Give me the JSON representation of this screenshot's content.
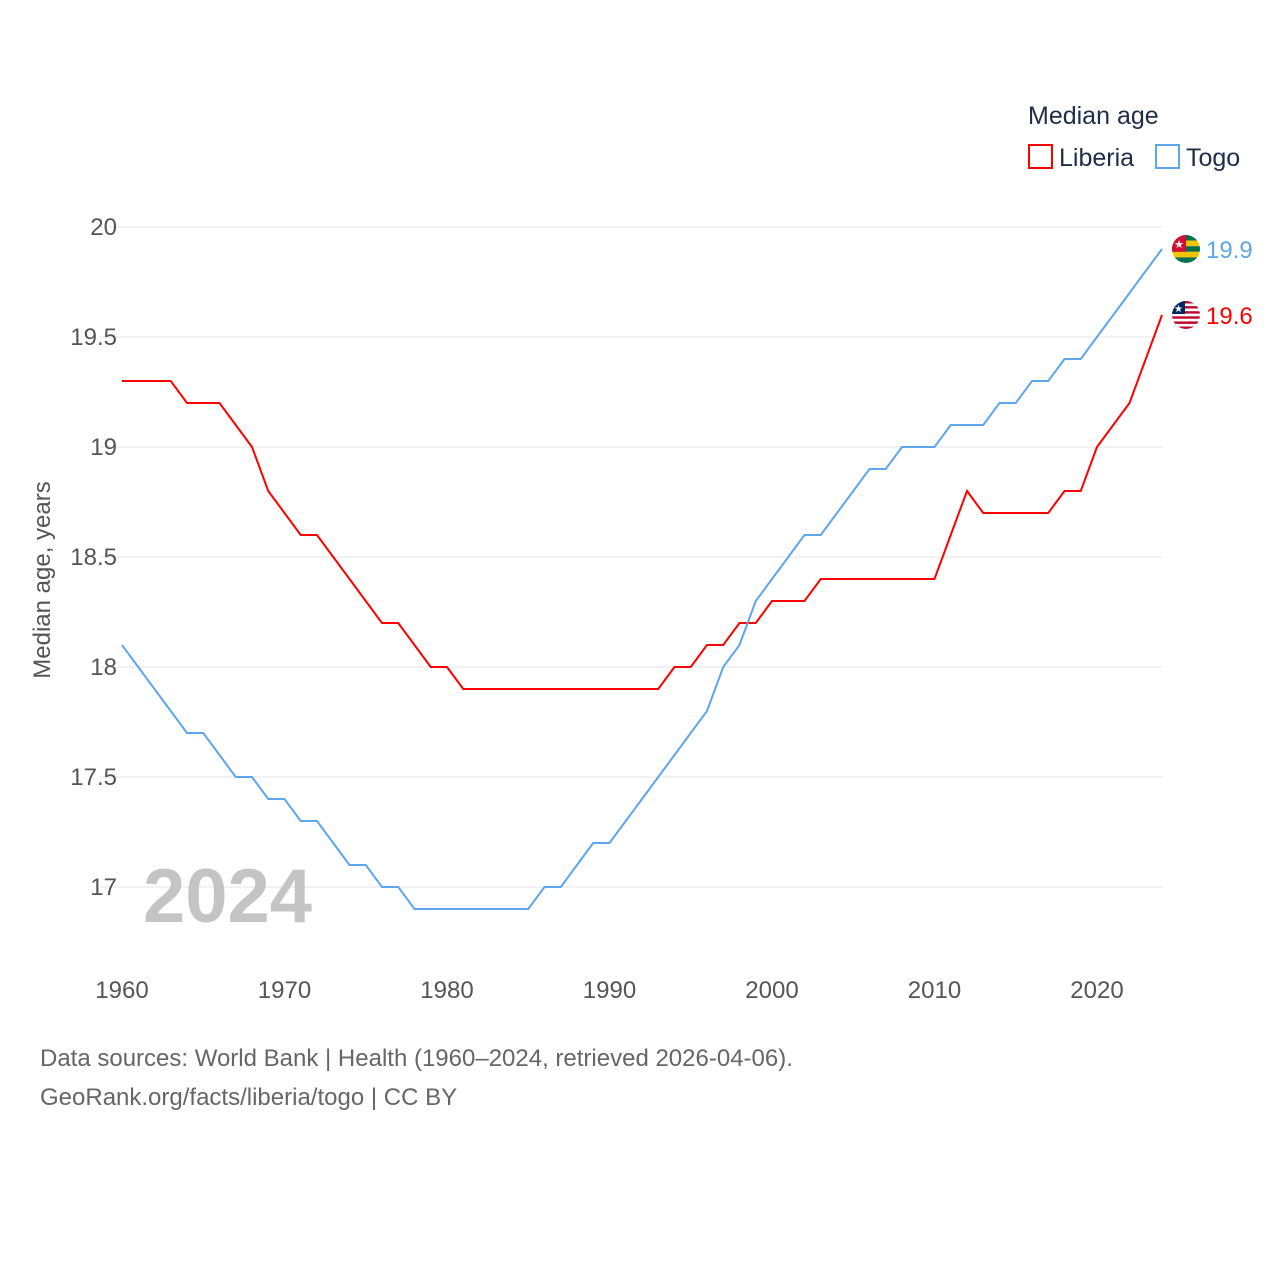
{
  "chart_data": {
    "type": "line",
    "title": "Median age",
    "xlabel": "",
    "ylabel": "Median age, years",
    "xlim": [
      1960,
      2024
    ],
    "ylim": [
      16.8,
      20
    ],
    "x_ticks": [
      "1960",
      "1970",
      "1980",
      "1990",
      "2000",
      "2010",
      "2020"
    ],
    "y_ticks": [
      "20",
      "19.5",
      "19",
      "18.5",
      "18",
      "17.5",
      "17"
    ],
    "grid": true,
    "legend_position": "top-right",
    "year_label": "2024",
    "x": [
      1960,
      1961,
      1962,
      1963,
      1964,
      1965,
      1966,
      1967,
      1968,
      1969,
      1970,
      1971,
      1972,
      1973,
      1974,
      1975,
      1976,
      1977,
      1978,
      1979,
      1980,
      1981,
      1982,
      1983,
      1984,
      1985,
      1986,
      1987,
      1988,
      1989,
      1990,
      1991,
      1992,
      1993,
      1994,
      1995,
      1996,
      1997,
      1998,
      1999,
      2000,
      2001,
      2002,
      2003,
      2004,
      2005,
      2006,
      2007,
      2008,
      2009,
      2010,
      2011,
      2012,
      2013,
      2014,
      2015,
      2016,
      2017,
      2018,
      2019,
      2020,
      2021,
      2022,
      2023,
      2024
    ],
    "series": [
      {
        "name": "Liberia",
        "color": "#ff0000",
        "end_label": "19.6",
        "values": [
          19.3,
          19.3,
          19.3,
          19.3,
          19.2,
          19.2,
          19.2,
          19.1,
          19.0,
          18.8,
          18.7,
          18.6,
          18.6,
          18.5,
          18.4,
          18.3,
          18.2,
          18.2,
          18.1,
          18.0,
          18.0,
          17.9,
          17.9,
          17.9,
          17.9,
          17.9,
          17.9,
          17.9,
          17.9,
          17.9,
          17.9,
          17.9,
          17.9,
          17.9,
          18.0,
          18.0,
          18.1,
          18.1,
          18.2,
          18.2,
          18.3,
          18.3,
          18.3,
          18.4,
          18.4,
          18.4,
          18.4,
          18.4,
          18.4,
          18.4,
          18.4,
          18.6,
          18.8,
          18.7,
          18.7,
          18.7,
          18.7,
          18.7,
          18.8,
          18.8,
          19.0,
          19.1,
          19.2,
          19.4,
          19.6
        ]
      },
      {
        "name": "Togo",
        "color": "#5ea6ec",
        "end_label": "19.9",
        "values": [
          18.1,
          18.0,
          17.9,
          17.8,
          17.7,
          17.7,
          17.6,
          17.5,
          17.5,
          17.4,
          17.4,
          17.3,
          17.3,
          17.2,
          17.1,
          17.1,
          17.0,
          17.0,
          16.9,
          16.9,
          16.9,
          16.9,
          16.9,
          16.9,
          16.9,
          16.9,
          17.0,
          17.0,
          17.1,
          17.2,
          17.2,
          17.3,
          17.4,
          17.5,
          17.6,
          17.7,
          17.8,
          18.0,
          18.1,
          18.3,
          18.4,
          18.5,
          18.6,
          18.6,
          18.7,
          18.8,
          18.9,
          18.9,
          19.0,
          19.0,
          19.0,
          19.1,
          19.1,
          19.1,
          19.2,
          19.2,
          19.3,
          19.3,
          19.4,
          19.4,
          19.5,
          19.6,
          19.7,
          19.8,
          19.9
        ]
      }
    ]
  },
  "footer": {
    "line1": "Data sources: World Bank | Health (1960–2024, retrieved 2026-04-06).",
    "line2": "GeoRank.org/facts/liberia/togo | CC BY"
  }
}
